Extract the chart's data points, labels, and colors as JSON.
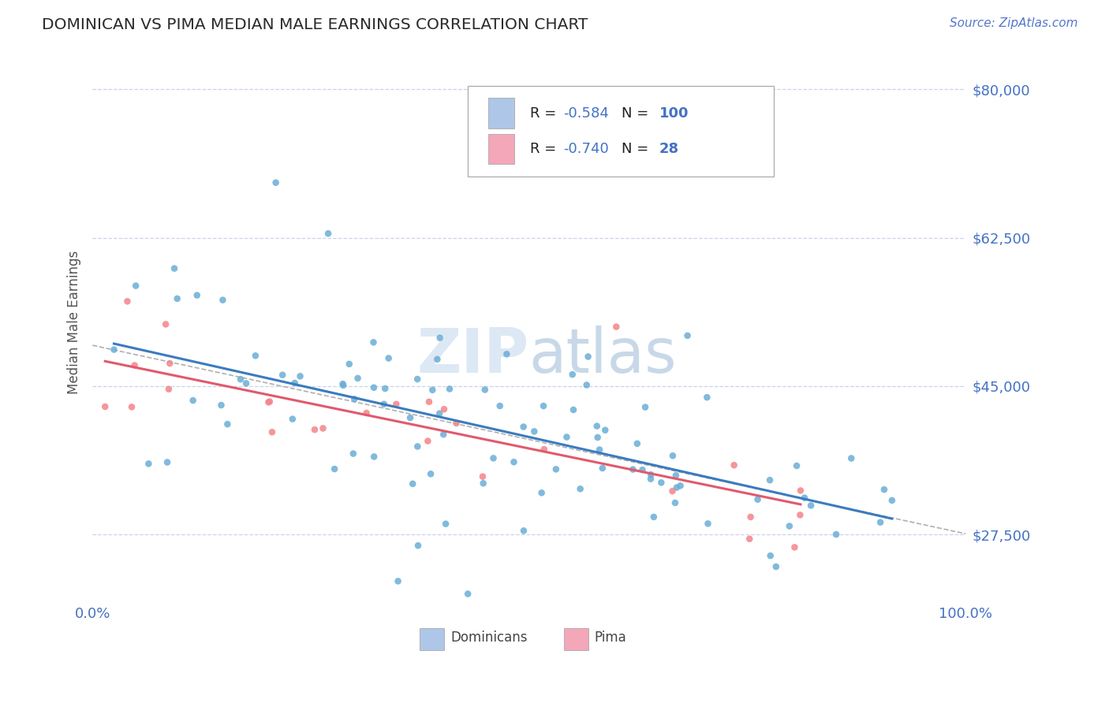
{
  "title": "DOMINICAN VS PIMA MEDIAN MALE EARNINGS CORRELATION CHART",
  "source_text": "Source: ZipAtlas.com",
  "ylabel": "Median Male Earnings",
  "xlim": [
    0.0,
    1.0
  ],
  "ylim": [
    20000,
    85000
  ],
  "yticks": [
    27500,
    45000,
    62500,
    80000
  ],
  "ytick_labels": [
    "$27,500",
    "$45,000",
    "$62,500",
    "$80,000"
  ],
  "legend_R1_val": "-0.584",
  "legend_N1_val": "100",
  "legend_R2_val": "-0.740",
  "legend_N2_val": "28",
  "legend_color1": "#aec6e8",
  "legend_color2": "#f4a7b9",
  "scatter_color1": "#6aaed6",
  "scatter_color2": "#f4848a",
  "line_color1": "#3b7bbf",
  "line_color2": "#e05a6d",
  "dashed_color": "#b0b0b0",
  "axis_color": "#4472c4",
  "watermark_color": "#d0dff0",
  "background_color": "#ffffff"
}
